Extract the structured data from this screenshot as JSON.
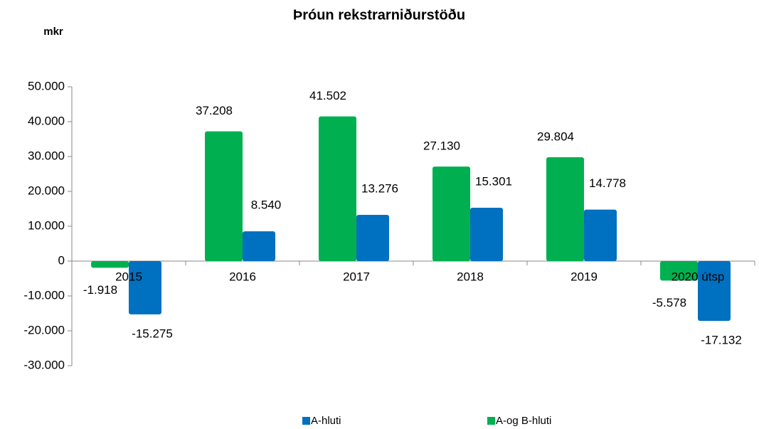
{
  "chart_data": {
    "type": "bar",
    "title": "Þróun rekstrarniðurstöðu",
    "y_label": "mkr",
    "categories": [
      "2015",
      "2016",
      "2017",
      "2018",
      "2019",
      "2020 útsp"
    ],
    "series": [
      {
        "name": "A-og B-hluti",
        "color": "#00b050",
        "values": [
          -1918,
          37208,
          41502,
          27130,
          29804,
          -5578
        ],
        "value_labels": [
          "-1.918",
          "37.208",
          "41.502",
          "27.130",
          "29.804",
          "-5.578"
        ]
      },
      {
        "name": "A-hluti",
        "color": "#0070c0",
        "values": [
          -15275,
          8540,
          13276,
          15301,
          14778,
          -17132
        ],
        "value_labels": [
          "-15.275",
          "8.540",
          "13.276",
          "15.301",
          "14.778",
          "-17.132"
        ]
      }
    ],
    "ylim": [
      -30000,
      50000
    ],
    "yticks": [
      {
        "value": -30000,
        "label": "-30.000"
      },
      {
        "value": -20000,
        "label": "-20.000"
      },
      {
        "value": -10000,
        "label": "-10.000"
      },
      0,
      {
        "value": 10000,
        "label": "10.000"
      },
      {
        "value": 20000,
        "label": "20.000"
      },
      {
        "value": 30000,
        "label": "30.000"
      },
      {
        "value": 40000,
        "label": "40.000"
      },
      {
        "value": 50000,
        "label": "50.000"
      }
    ],
    "legend": "bottom",
    "grid": false
  }
}
